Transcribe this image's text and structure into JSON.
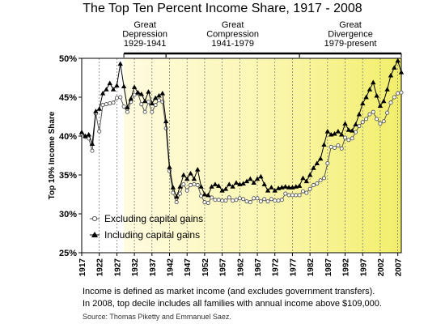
{
  "chart_data": {
    "type": "line",
    "title": "The Top Ten Percent Income Share, 1917 - 2008",
    "ylabel": "Top 10% Income Share",
    "xlabel": "",
    "ylim": [
      25,
      50
    ],
    "xlim": [
      1917,
      2008
    ],
    "y_ticks": [
      "25%",
      "30%",
      "35%",
      "40%",
      "45%",
      "50%"
    ],
    "x_ticks": [
      "1917",
      "1922",
      "1927",
      "1932",
      "1937",
      "1942",
      "1947",
      "1952",
      "1957",
      "1962",
      "1967",
      "1972",
      "1977",
      "1982",
      "1987",
      "1992",
      "1997",
      "2002",
      "2007"
    ],
    "legend_position": "bottom-left",
    "grid": "vertical dashed lines every 5 years",
    "eras": [
      {
        "label_line1": "Great",
        "label_line2": "Depression",
        "label_line3": "1929-1941",
        "start": 1929,
        "end": 1941
      },
      {
        "label_line1": "Great",
        "label_line2": "Compression",
        "label_line3": "1941-1979",
        "start": 1941,
        "end": 1979
      },
      {
        "label_line1": "Great",
        "label_line2": "Divergence",
        "label_line3": "1979-present",
        "start": 1979,
        "end": 2008
      }
    ],
    "series": [
      {
        "name": "Excluding capital gains",
        "marker": "open-circle",
        "color": "#555555",
        "x": [
          1917,
          1918,
          1919,
          1920,
          1921,
          1922,
          1923,
          1924,
          1925,
          1926,
          1927,
          1928,
          1929,
          1930,
          1931,
          1932,
          1933,
          1934,
          1935,
          1936,
          1937,
          1938,
          1939,
          1940,
          1941,
          1942,
          1943,
          1944,
          1945,
          1946,
          1947,
          1948,
          1949,
          1950,
          1951,
          1952,
          1953,
          1954,
          1955,
          1956,
          1957,
          1958,
          1959,
          1960,
          1961,
          1962,
          1963,
          1964,
          1965,
          1966,
          1967,
          1968,
          1969,
          1970,
          1971,
          1972,
          1973,
          1974,
          1975,
          1976,
          1977,
          1978,
          1979,
          1980,
          1981,
          1982,
          1983,
          1984,
          1985,
          1986,
          1987,
          1988,
          1989,
          1990,
          1991,
          1992,
          1993,
          1994,
          1995,
          1996,
          1997,
          1998,
          1999,
          2000,
          2001,
          2002,
          2003,
          2004,
          2005,
          2006,
          2007,
          2008
        ],
        "values": [
          40.3,
          39.9,
          39.7,
          38.1,
          42.9,
          40.6,
          44.0,
          44.1,
          44.2,
          44.3,
          44.9,
          45.0,
          43.8,
          43.1,
          44.4,
          45.3,
          45.5,
          44.1,
          43.1,
          44.4,
          43.1,
          44.0,
          44.6,
          44.4,
          41.0,
          35.5,
          32.7,
          31.5,
          32.6,
          33.8,
          33.0,
          33.7,
          33.8,
          33.7,
          32.3,
          31.5,
          31.4,
          32.1,
          31.8,
          31.8,
          31.7,
          31.7,
          32.1,
          31.7,
          31.8,
          32.0,
          31.9,
          31.6,
          31.5,
          32.0,
          32.0,
          31.6,
          31.9,
          31.6,
          31.9,
          31.7,
          31.7,
          31.8,
          32.6,
          32.4,
          32.4,
          32.4,
          32.4,
          32.9,
          32.7,
          33.2,
          33.7,
          33.9,
          34.3,
          34.6,
          36.5,
          38.6,
          38.5,
          38.8,
          38.4,
          39.8,
          39.5,
          39.7,
          40.5,
          41.3,
          41.8,
          42.2,
          42.8,
          43.1,
          42.2,
          41.6,
          41.9,
          43.0,
          44.3,
          45.0,
          45.5,
          45.6
        ]
      },
      {
        "name": "Including capital gains",
        "marker": "filled-triangle",
        "color": "#000000",
        "x": [
          1917,
          1918,
          1919,
          1920,
          1921,
          1922,
          1923,
          1924,
          1925,
          1926,
          1927,
          1928,
          1929,
          1930,
          1931,
          1932,
          1933,
          1934,
          1935,
          1936,
          1937,
          1938,
          1939,
          1940,
          1941,
          1942,
          1943,
          1944,
          1945,
          1946,
          1947,
          1948,
          1949,
          1950,
          1951,
          1952,
          1953,
          1954,
          1955,
          1956,
          1957,
          1958,
          1959,
          1960,
          1961,
          1962,
          1963,
          1964,
          1965,
          1966,
          1967,
          1968,
          1969,
          1970,
          1971,
          1972,
          1973,
          1974,
          1975,
          1976,
          1977,
          1978,
          1979,
          1980,
          1981,
          1982,
          1983,
          1984,
          1985,
          1986,
          1987,
          1988,
          1989,
          1990,
          1991,
          1992,
          1993,
          1994,
          1995,
          1996,
          1997,
          1998,
          1999,
          2000,
          2001,
          2002,
          2003,
          2004,
          2005,
          2006,
          2007,
          2008
        ],
        "values": [
          40.5,
          40.0,
          40.2,
          39.0,
          43.2,
          43.5,
          45.5,
          46.0,
          46.8,
          46.0,
          46.5,
          49.3,
          46.4,
          43.7,
          44.8,
          46.3,
          45.6,
          45.4,
          44.5,
          45.7,
          44.2,
          44.9,
          45.2,
          45.5,
          41.9,
          36.0,
          33.4,
          32.2,
          33.5,
          35.0,
          34.5,
          35.2,
          34.5,
          35.7,
          33.5,
          32.5,
          32.4,
          33.5,
          33.8,
          33.6,
          33.0,
          33.2,
          33.8,
          33.5,
          34.0,
          33.8,
          33.9,
          34.2,
          34.5,
          34.0,
          34.5,
          34.8,
          33.8,
          33.0,
          33.4,
          33.0,
          33.3,
          33.4,
          33.5,
          33.4,
          33.4,
          33.5,
          33.6,
          34.6,
          34.2,
          35.0,
          35.9,
          36.5,
          37.1,
          38.9,
          40.6,
          40.2,
          40.3,
          40.6,
          40.2,
          41.6,
          40.8,
          40.7,
          41.5,
          42.8,
          44.2,
          45.0,
          46.0,
          46.9,
          45.2,
          43.9,
          44.5,
          46.0,
          47.8,
          48.8,
          49.7,
          48.2
        ]
      }
    ]
  },
  "notes": {
    "line1": "Income is defined as market income (and excludes government transfers).",
    "line2": "In 2008, top decile includes all families with annual income above $109,000.",
    "source": "Source: Thomas Piketty and Emmanuel Saez."
  }
}
